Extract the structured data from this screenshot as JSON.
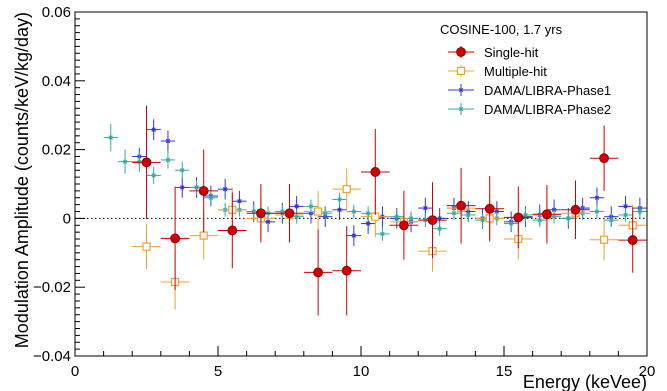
{
  "chart_data": {
    "type": "scatter",
    "title": "",
    "xlabel": "Energy (keVee)",
    "ylabel": "Modulation Amplitude (counts/keV/kg/day)",
    "xlim": [
      0,
      20
    ],
    "ylim": [
      -0.04,
      0.06
    ],
    "x_ticks": [
      {
        "value": 0,
        "label": "0"
      },
      {
        "value": 5,
        "label": "5"
      },
      {
        "value": 10,
        "label": "10"
      },
      {
        "value": 15,
        "label": "15"
      },
      {
        "value": 20,
        "label": "20"
      }
    ],
    "y_ticks": [
      {
        "value": -0.04,
        "label": "−0.04"
      },
      {
        "value": -0.02,
        "label": "−0.02"
      },
      {
        "value": 0,
        "label": "0"
      },
      {
        "value": 0.02,
        "label": "0.02"
      },
      {
        "value": 0.04,
        "label": "0.04"
      },
      {
        "value": 0.06,
        "label": "0.06"
      }
    ],
    "grid": false,
    "reference_line": {
      "y": 0,
      "style": "dotted"
    },
    "legend_title": "COSINE-100, 1.7 yrs",
    "legend_position": "top-right",
    "series": [
      {
        "name": "Single-hit",
        "color": "#cc0000",
        "marker": "filled-circle",
        "points": [
          {
            "x": 2.5,
            "y": 0.0163,
            "yerr": 0.0165
          },
          {
            "x": 3.5,
            "y": -0.0058,
            "yerr": 0.015
          },
          {
            "x": 4.5,
            "y": 0.008,
            "yerr": 0.012
          },
          {
            "x": 5.5,
            "y": -0.0035,
            "yerr": 0.011
          },
          {
            "x": 6.5,
            "y": 0.0015,
            "yerr": 0.0085
          },
          {
            "x": 7.5,
            "y": 0.0015,
            "yerr": 0.0085
          },
          {
            "x": 8.5,
            "y": -0.0157,
            "yerr": 0.0125
          },
          {
            "x": 9.5,
            "y": -0.0152,
            "yerr": 0.013
          },
          {
            "x": 10.5,
            "y": 0.0135,
            "yerr": 0.0125
          },
          {
            "x": 11.5,
            "y": -0.002,
            "yerr": 0.01
          },
          {
            "x": 12.5,
            "y": -0.0005,
            "yerr": 0.011
          },
          {
            "x": 13.5,
            "y": 0.0037,
            "yerr": 0.011
          },
          {
            "x": 14.5,
            "y": 0.0028,
            "yerr": 0.0095
          },
          {
            "x": 15.5,
            "y": 0.0003,
            "yerr": 0.009
          },
          {
            "x": 16.5,
            "y": 0.0012,
            "yerr": 0.0085
          },
          {
            "x": 17.5,
            "y": 0.0025,
            "yerr": 0.0085
          },
          {
            "x": 18.5,
            "y": 0.0175,
            "yerr": 0.0095
          },
          {
            "x": 19.5,
            "y": -0.0063,
            "yerr": 0.0095
          }
        ]
      },
      {
        "name": "Multiple-hit",
        "color": "#f0a030",
        "marker": "open-square",
        "points": [
          {
            "x": 2.5,
            "y": -0.0082,
            "yerr": 0.0065
          },
          {
            "x": 3.5,
            "y": -0.0185,
            "yerr": 0.008
          },
          {
            "x": 4.5,
            "y": -0.005,
            "yerr": 0.007
          },
          {
            "x": 5.5,
            "y": 0.0025,
            "yerr": 0.0065
          },
          {
            "x": 6.5,
            "y": 0.0,
            "yerr": 0.006
          },
          {
            "x": 7.5,
            "y": 0.001,
            "yerr": 0.006
          },
          {
            "x": 8.5,
            "y": 0.002,
            "yerr": 0.006
          },
          {
            "x": 9.5,
            "y": 0.0085,
            "yerr": 0.006
          },
          {
            "x": 10.5,
            "y": 0.0005,
            "yerr": 0.006
          },
          {
            "x": 11.5,
            "y": -0.001,
            "yerr": 0.006
          },
          {
            "x": 12.5,
            "y": -0.0095,
            "yerr": 0.006
          },
          {
            "x": 13.5,
            "y": 0.003,
            "yerr": 0.006
          },
          {
            "x": 14.5,
            "y": 0.0,
            "yerr": 0.006
          },
          {
            "x": 15.5,
            "y": -0.006,
            "yerr": 0.006
          },
          {
            "x": 16.5,
            "y": 0.001,
            "yerr": 0.006
          },
          {
            "x": 17.5,
            "y": 0.0015,
            "yerr": 0.006
          },
          {
            "x": 18.5,
            "y": -0.0062,
            "yerr": 0.006
          },
          {
            "x": 19.5,
            "y": -0.002,
            "yerr": 0.006
          }
        ]
      },
      {
        "name": "DAMA/LIBRA-Phase1",
        "color": "#3333dd",
        "marker": "star",
        "points": [
          {
            "x": 2.25,
            "y": 0.018,
            "yerr": 0.0025
          },
          {
            "x": 2.75,
            "y": 0.0258,
            "yerr": 0.003
          },
          {
            "x": 3.25,
            "y": 0.0225,
            "yerr": 0.003
          },
          {
            "x": 3.75,
            "y": 0.009,
            "yerr": 0.003
          },
          {
            "x": 4.25,
            "y": 0.009,
            "yerr": 0.003
          },
          {
            "x": 4.75,
            "y": 0.0065,
            "yerr": 0.003
          },
          {
            "x": 5.25,
            "y": 0.0085,
            "yerr": 0.003
          },
          {
            "x": 5.75,
            "y": 0.005,
            "yerr": 0.003
          },
          {
            "x": 6.25,
            "y": 0.002,
            "yerr": 0.003
          },
          {
            "x": 6.75,
            "y": -0.001,
            "yerr": 0.003
          },
          {
            "x": 7.25,
            "y": 0.0015,
            "yerr": 0.003
          },
          {
            "x": 7.75,
            "y": 0.0035,
            "yerr": 0.003
          },
          {
            "x": 8.25,
            "y": 0.0015,
            "yerr": 0.003
          },
          {
            "x": 8.75,
            "y": 0.0005,
            "yerr": 0.003
          },
          {
            "x": 9.25,
            "y": 0.0025,
            "yerr": 0.003
          },
          {
            "x": 9.75,
            "y": -0.005,
            "yerr": 0.003
          },
          {
            "x": 10.25,
            "y": -0.0015,
            "yerr": 0.003
          },
          {
            "x": 10.75,
            "y": 0.0005,
            "yerr": 0.003
          },
          {
            "x": 11.25,
            "y": 0.0,
            "yerr": 0.003
          },
          {
            "x": 11.75,
            "y": -0.001,
            "yerr": 0.003
          },
          {
            "x": 12.25,
            "y": 0.003,
            "yerr": 0.003
          },
          {
            "x": 12.75,
            "y": 0.0,
            "yerr": 0.003
          },
          {
            "x": 13.25,
            "y": 0.003,
            "yerr": 0.003
          },
          {
            "x": 13.75,
            "y": 0.002,
            "yerr": 0.003
          },
          {
            "x": 14.25,
            "y": 0.0,
            "yerr": 0.003
          },
          {
            "x": 14.75,
            "y": 0.002,
            "yerr": 0.003
          },
          {
            "x": 15.25,
            "y": -0.001,
            "yerr": 0.003
          },
          {
            "x": 15.75,
            "y": 0.0005,
            "yerr": 0.003
          },
          {
            "x": 16.25,
            "y": 0.001,
            "yerr": 0.003
          },
          {
            "x": 16.75,
            "y": 0.0025,
            "yerr": 0.003
          },
          {
            "x": 17.25,
            "y": 0.0,
            "yerr": 0.003
          },
          {
            "x": 17.75,
            "y": 0.003,
            "yerr": 0.003
          },
          {
            "x": 18.25,
            "y": 0.006,
            "yerr": 0.003
          },
          {
            "x": 18.75,
            "y": 0.0005,
            "yerr": 0.003
          },
          {
            "x": 19.25,
            "y": 0.0035,
            "yerr": 0.003
          },
          {
            "x": 19.75,
            "y": 0.003,
            "yerr": 0.003
          }
        ]
      },
      {
        "name": "DAMA/LIBRA-Phase2",
        "color": "#33aaa0",
        "marker": "star",
        "points": [
          {
            "x": 1.25,
            "y": 0.0235,
            "yerr": 0.004
          },
          {
            "x": 1.75,
            "y": 0.0165,
            "yerr": 0.0035
          },
          {
            "x": 2.25,
            "y": 0.0165,
            "yerr": 0.003
          },
          {
            "x": 2.75,
            "y": 0.0125,
            "yerr": 0.0025
          },
          {
            "x": 3.25,
            "y": 0.017,
            "yerr": 0.0025
          },
          {
            "x": 3.75,
            "y": 0.014,
            "yerr": 0.0025
          },
          {
            "x": 4.25,
            "y": 0.009,
            "yerr": 0.002
          },
          {
            "x": 4.75,
            "y": 0.006,
            "yerr": 0.002
          },
          {
            "x": 5.25,
            "y": 0.0025,
            "yerr": 0.002
          },
          {
            "x": 5.75,
            "y": 0.0025,
            "yerr": 0.002
          },
          {
            "x": 6.25,
            "y": 0.002,
            "yerr": 0.002
          },
          {
            "x": 6.75,
            "y": 0.0015,
            "yerr": 0.002
          },
          {
            "x": 7.25,
            "y": 0.002,
            "yerr": 0.002
          },
          {
            "x": 7.75,
            "y": 0.0005,
            "yerr": 0.002
          },
          {
            "x": 8.25,
            "y": 0.0035,
            "yerr": 0.002
          },
          {
            "x": 8.75,
            "y": 0.0015,
            "yerr": 0.002
          },
          {
            "x": 9.25,
            "y": 0.0055,
            "yerr": 0.002
          },
          {
            "x": 9.75,
            "y": 0.002,
            "yerr": 0.002
          },
          {
            "x": 10.25,
            "y": 0.0015,
            "yerr": 0.002
          },
          {
            "x": 10.75,
            "y": -0.0045,
            "yerr": 0.002
          },
          {
            "x": 11.25,
            "y": 0.0005,
            "yerr": 0.002
          },
          {
            "x": 11.75,
            "y": 0.0,
            "yerr": 0.002
          },
          {
            "x": 12.25,
            "y": -0.0005,
            "yerr": 0.002
          },
          {
            "x": 12.75,
            "y": -0.003,
            "yerr": 0.002
          },
          {
            "x": 13.25,
            "y": 0.0015,
            "yerr": 0.002
          },
          {
            "x": 13.75,
            "y": 0.001,
            "yerr": 0.002
          },
          {
            "x": 14.25,
            "y": -0.0005,
            "yerr": 0.002
          },
          {
            "x": 14.75,
            "y": 0.0,
            "yerr": 0.002
          },
          {
            "x": 15.25,
            "y": -0.0015,
            "yerr": 0.002
          },
          {
            "x": 15.75,
            "y": 0.001,
            "yerr": 0.002
          },
          {
            "x": 16.25,
            "y": -0.0005,
            "yerr": 0.002
          },
          {
            "x": 16.75,
            "y": 0.0005,
            "yerr": 0.002
          },
          {
            "x": 17.25,
            "y": 0.0,
            "yerr": 0.002
          },
          {
            "x": 17.75,
            "y": 0.0015,
            "yerr": 0.002
          },
          {
            "x": 18.25,
            "y": 0.002,
            "yerr": 0.002
          },
          {
            "x": 18.75,
            "y": -0.0005,
            "yerr": 0.002
          },
          {
            "x": 19.25,
            "y": 0.001,
            "yerr": 0.002
          },
          {
            "x": 19.75,
            "y": 0.002,
            "yerr": 0.002
          }
        ]
      }
    ]
  }
}
